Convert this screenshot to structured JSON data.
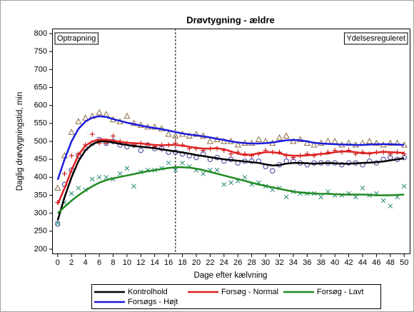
{
  "chart_data": {
    "type": "line",
    "title": "Drøvtygning - ældre",
    "x_label": "Dage efter kælvning",
    "y_label": "Daglig drøvtygningstid, min",
    "annotations": [
      "Optrapning",
      "Ydelsesreguleret"
    ],
    "reference_line_x": 17,
    "xlim": [
      -0.7,
      50.8
    ],
    "ylim": [
      188,
      814
    ],
    "xticks": [
      0,
      2,
      4,
      6,
      8,
      10,
      12,
      14,
      16,
      18,
      20,
      22,
      24,
      26,
      28,
      30,
      32,
      34,
      36,
      38,
      40,
      42,
      44,
      46,
      48,
      50
    ],
    "yticks": [
      200,
      250,
      300,
      350,
      400,
      450,
      500,
      550,
      600,
      650,
      700,
      750,
      800
    ],
    "x": [
      0,
      1,
      2,
      3,
      4,
      5,
      6,
      7,
      8,
      9,
      10,
      11,
      12,
      13,
      14,
      15,
      16,
      17,
      18,
      19,
      20,
      21,
      22,
      23,
      24,
      25,
      26,
      27,
      28,
      29,
      30,
      31,
      32,
      33,
      34,
      35,
      36,
      37,
      38,
      39,
      40,
      41,
      42,
      43,
      44,
      45,
      46,
      47,
      48,
      49,
      50
    ],
    "series": [
      {
        "name": "Kontrolhold",
        "color": "#000000",
        "marker": "circle",
        "marker_color": "#3b3b9c",
        "values": [
          280,
          345,
          400,
          445,
          475,
          492,
          500,
          500,
          497,
          493,
          490,
          487,
          485,
          483,
          481,
          478,
          475,
          472,
          469,
          466,
          462,
          459,
          456,
          453,
          450,
          448,
          446,
          444,
          442,
          440,
          436,
          433,
          434,
          438,
          440,
          440,
          439,
          438,
          439,
          440,
          439,
          438,
          438,
          439,
          440,
          441,
          442,
          444,
          447,
          450,
          453
        ],
        "observed": [
          270,
          380,
          420,
          460,
          480,
          495,
          505,
          495,
          500,
          490,
          485,
          490,
          475,
          490,
          480,
          480,
          470,
          470,
          465,
          460,
          455,
          465,
          450,
          455,
          445,
          450,
          440,
          445,
          445,
          445,
          430,
          418,
          435,
          445,
          445,
          440,
          435,
          440,
          440,
          440,
          440,
          435,
          440,
          440,
          435,
          445,
          440,
          450,
          455,
          450,
          455
        ]
      },
      {
        "name": "Forsøg - Normal",
        "color": "#e02020",
        "marker": "plus",
        "marker_color": "#c00000",
        "values": [
          325,
          370,
          420,
          462,
          488,
          500,
          505,
          505,
          502,
          499,
          496,
          495,
          494,
          492,
          490,
          489,
          490,
          490,
          488,
          485,
          482,
          480,
          480,
          481,
          478,
          472,
          466,
          462,
          463,
          467,
          470,
          470,
          467,
          462,
          460,
          460,
          461,
          463,
          465,
          466,
          470,
          472,
          472,
          470,
          467,
          467,
          469,
          471,
          470,
          469,
          468
        ],
        "observed": [
          330,
          410,
          460,
          465,
          490,
          520,
          495,
          495,
          515,
          500,
          495,
          490,
          495,
          490,
          485,
          490,
          490,
          495,
          490,
          480,
          480,
          475,
          480,
          480,
          475,
          465,
          470,
          465,
          460,
          465,
          475,
          470,
          470,
          460,
          455,
          460,
          465,
          460,
          465,
          470,
          475,
          470,
          475,
          465,
          470,
          465,
          470,
          470,
          465,
          470,
          465
        ]
      },
      {
        "name": "Forsøg - Lavt",
        "color": "#1f8a1f",
        "marker": "cross",
        "marker_color": "#2a8a7a",
        "values": [
          300,
          318,
          335,
          350,
          363,
          375,
          385,
          392,
          397,
          401,
          405,
          409,
          413,
          417,
          420,
          423,
          426,
          428,
          428,
          427,
          424,
          420,
          415,
          410,
          405,
          400,
          395,
          390,
          385,
          380,
          376,
          372,
          368,
          364,
          360,
          358,
          356,
          355,
          354,
          354,
          353,
          352,
          352,
          352,
          352,
          351,
          350,
          350,
          350,
          351,
          352
        ],
        "observed": [
          272,
          330,
          355,
          370,
          365,
          395,
          400,
          400,
          395,
          410,
          425,
          375,
          415,
          420,
          420,
          425,
          440,
          420,
          440,
          430,
          420,
          410,
          420,
          420,
          380,
          385,
          390,
          400,
          380,
          385,
          375,
          365,
          370,
          345,
          360,
          355,
          355,
          355,
          345,
          360,
          350,
          350,
          355,
          345,
          370,
          350,
          355,
          335,
          320,
          345,
          375
        ]
      },
      {
        "name": "Forsøgs - Højt",
        "color": "#1c1cdc",
        "marker": "triangle",
        "marker_color": "#8a6a40",
        "values": [
          393,
          450,
          500,
          535,
          555,
          566,
          570,
          568,
          562,
          557,
          552,
          548,
          544,
          540,
          537,
          534,
          530,
          526,
          522,
          519,
          517,
          514,
          511,
          507,
          504,
          500,
          497,
          495,
          494,
          494,
          495,
          497,
          500,
          503,
          504,
          503,
          500,
          496,
          494,
          493,
          492,
          491,
          491,
          490,
          490,
          491,
          492,
          492,
          492,
          491,
          490
        ],
        "observed": [
          370,
          460,
          525,
          555,
          565,
          570,
          580,
          575,
          560,
          555,
          570,
          550,
          545,
          540,
          540,
          535,
          520,
          515,
          520,
          515,
          520,
          515,
          500,
          505,
          500,
          500,
          490,
          495,
          495,
          505,
          500,
          495,
          510,
          515,
          500,
          505,
          495,
          490,
          495,
          500,
          500,
          490,
          495,
          490,
          495,
          500,
          495,
          490,
          495,
          495,
          490
        ]
      }
    ]
  }
}
